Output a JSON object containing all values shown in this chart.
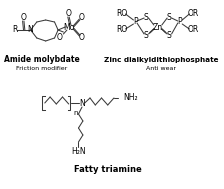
{
  "background_color": "#ffffff",
  "label1": "Amide molybdate",
  "sublabel1": "Friction modifier",
  "label2": "Zinc dialkyldithiophosphate",
  "sublabel2": "Anti wear",
  "label3": "Fatty triamine",
  "figsize": [
    2.24,
    1.89
  ],
  "dpi": 100,
  "line_color": "#3a3a3a",
  "lw": 0.75
}
